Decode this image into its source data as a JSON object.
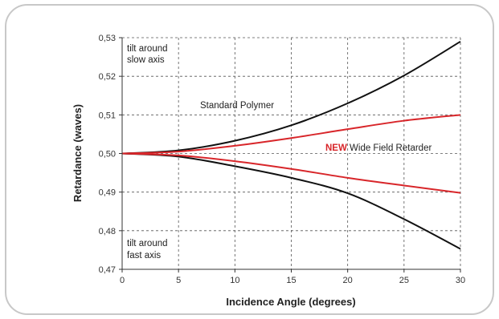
{
  "chart_data": {
    "type": "line",
    "xlabel": "Incidence Angle (degrees)",
    "ylabel": "Retardance (waves)",
    "xlim": [
      0,
      30
    ],
    "ylim": [
      0.47,
      0.53
    ],
    "xticks": [
      0,
      5,
      10,
      15,
      20,
      25,
      30
    ],
    "yticks": [
      0.47,
      0.48,
      0.49,
      0.5,
      0.51,
      0.52,
      0.53
    ],
    "ytick_labels": [
      "0,47",
      "0,48",
      "0,49",
      "0,50",
      "0,51",
      "0,52",
      "0,53"
    ],
    "grid": "dashed",
    "series": [
      {
        "group": "Standard Polymer",
        "color": "#111111",
        "x": [
          0,
          5,
          10,
          15,
          20,
          25,
          30
        ],
        "y": [
          0.5,
          0.5008,
          0.5033,
          0.5073,
          0.513,
          0.5202,
          0.529
        ]
      },
      {
        "group": "Standard Polymer",
        "color": "#111111",
        "x": [
          0,
          5,
          10,
          15,
          20,
          25,
          30
        ],
        "y": [
          0.5,
          0.4992,
          0.4967,
          0.4937,
          0.4897,
          0.483,
          0.4753
        ]
      },
      {
        "group": "NEW Wide Field Retarder",
        "color": "#d8262a",
        "x": [
          0,
          5,
          10,
          15,
          20,
          25,
          30
        ],
        "y": [
          0.5,
          0.5005,
          0.502,
          0.504,
          0.5063,
          0.5085,
          0.51
        ]
      },
      {
        "group": "NEW Wide Field Retarder",
        "color": "#d8262a",
        "x": [
          0,
          5,
          10,
          15,
          20,
          25,
          30
        ],
        "y": [
          0.5,
          0.4995,
          0.498,
          0.496,
          0.4937,
          0.4917,
          0.4898
        ]
      }
    ],
    "annotations": {
      "standard": "Standard Polymer",
      "new_bold": "NEW",
      "new_rest": " Wide Field Retarder",
      "slow_line1": "tilt around",
      "slow_line2": "slow axis",
      "fast_line1": "tilt around",
      "fast_line2": "fast axis"
    }
  }
}
